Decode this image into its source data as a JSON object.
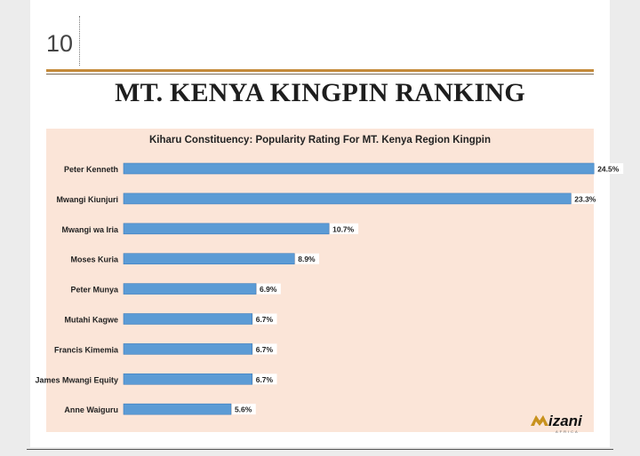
{
  "page": {
    "number": "10",
    "headline": "MT. KENYA KINGPIN RANKING"
  },
  "logo": {
    "text": "izani",
    "subtext": "AFRICA"
  },
  "colors": {
    "bar": "#5b9bd5",
    "bar_edge": "#3f7fbf",
    "chart_bg": "#fbe5d8",
    "accent_rule": "#c48a3a"
  },
  "chart_data": {
    "type": "bar",
    "orientation": "horizontal",
    "title": "Kiharu Constituency: Popularity Rating For MT. Kenya Region Kingpin",
    "xlabel": "",
    "ylabel": "",
    "categories": [
      "Peter Kenneth",
      "Mwangi Kiunjuri",
      "Mwangi wa Iria",
      "Moses Kuria",
      "Peter Munya",
      "Mutahi Kagwe",
      "Francis Kimemia",
      "James Mwangi Equity",
      "Anne Waiguru"
    ],
    "values": [
      24.5,
      23.3,
      10.7,
      8.9,
      6.9,
      6.7,
      6.7,
      6.7,
      5.6
    ],
    "value_labels": [
      "24.5%",
      "23.3%",
      "10.7%",
      "8.9%",
      "6.9%",
      "6.7%",
      "6.7%",
      "6.7%",
      "5.6%"
    ],
    "xlim": [
      0,
      25
    ],
    "grid": false,
    "legend": "none"
  }
}
